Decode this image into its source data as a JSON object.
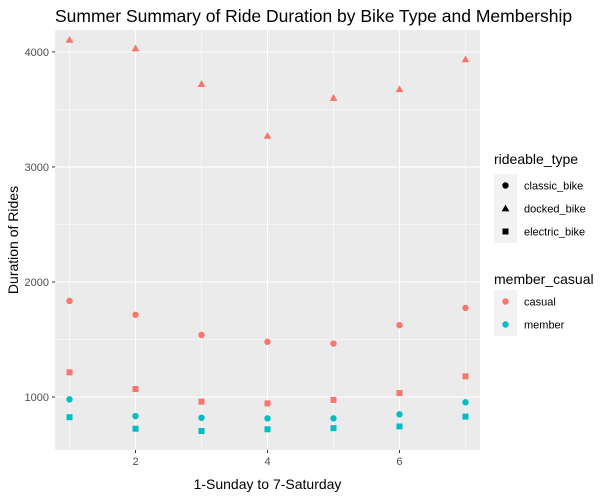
{
  "chart_data": {
    "type": "scatter",
    "title": "Summer Summary of Ride Duration by Bike Type and Membership",
    "xlabel": "1-Sunday to 7-Saturday",
    "ylabel": "Duration of Rides",
    "xlim": [
      0.78,
      7.22
    ],
    "ylim": [
      540,
      4190
    ],
    "x_ticks": [
      2,
      4,
      6
    ],
    "y_ticks": [
      1000,
      2000,
      3000,
      4000
    ],
    "grid": true,
    "legend_position": "right",
    "colors": {
      "casual": "#F8766D",
      "member": "#00BFC4",
      "panel": "#EBEBEB",
      "grid": "#FFFFFF",
      "legend_key": "#F2F2F2"
    },
    "legends": [
      {
        "title": "rideable_type",
        "entries": [
          {
            "label": "classic_bike",
            "shape": "circle"
          },
          {
            "label": "docked_bike",
            "shape": "triangle"
          },
          {
            "label": "electric_bike",
            "shape": "square"
          }
        ]
      },
      {
        "title": "member_casual",
        "entries": [
          {
            "label": "casual",
            "color": "#F8766D"
          },
          {
            "label": "member",
            "color": "#00BFC4"
          }
        ]
      }
    ],
    "series": [
      {
        "member": "casual",
        "rideable_type": "classic_bike",
        "shape": "circle",
        "color": "#F8766D",
        "x": [
          1,
          2,
          3,
          4,
          5,
          6,
          7
        ],
        "y": [
          1835,
          1715,
          1540,
          1480,
          1465,
          1625,
          1775
        ]
      },
      {
        "member": "casual",
        "rideable_type": "docked_bike",
        "shape": "triangle",
        "color": "#F8766D",
        "x": [
          1,
          2,
          3,
          4,
          5,
          6,
          7
        ],
        "y": [
          4105,
          4030,
          3720,
          3270,
          3600,
          3675,
          3935
        ]
      },
      {
        "member": "casual",
        "rideable_type": "electric_bike",
        "shape": "square",
        "color": "#F8766D",
        "x": [
          1,
          2,
          3,
          4,
          5,
          6,
          7
        ],
        "y": [
          1215,
          1070,
          960,
          945,
          975,
          1035,
          1180
        ]
      },
      {
        "member": "member",
        "rideable_type": "classic_bike",
        "shape": "circle",
        "color": "#00BFC4",
        "x": [
          1,
          2,
          3,
          4,
          5,
          6,
          7
        ],
        "y": [
          980,
          835,
          820,
          815,
          815,
          850,
          955
        ]
      },
      {
        "member": "member",
        "rideable_type": "electric_bike",
        "shape": "square",
        "color": "#00BFC4",
        "x": [
          1,
          2,
          3,
          4,
          5,
          6,
          7
        ],
        "y": [
          825,
          725,
          705,
          720,
          730,
          745,
          830
        ]
      }
    ]
  }
}
